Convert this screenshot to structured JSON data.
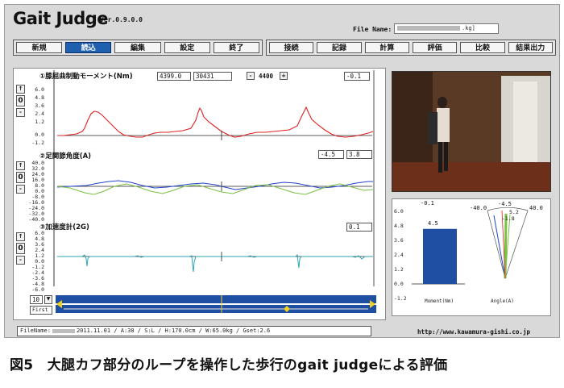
{
  "app": {
    "title": "Gait Judge",
    "version": "Ver.0.9.0.0",
    "file_name_label": "File Name:",
    "file_name_suffix": ".kg]"
  },
  "toolbar_left": [
    "新規",
    "読込",
    "編集",
    "設定",
    "終了"
  ],
  "toolbar_left_active": 1,
  "toolbar_right": [
    "接続",
    "記録",
    "計算",
    "評価",
    "比較",
    "結果出力"
  ],
  "pane1": {
    "title": "①膝屈曲制動モーメント(Nm)",
    "field1": "4399.0",
    "field2": "30431",
    "minus": "-",
    "value": "4400",
    "plus": "+",
    "readout": "-0.1",
    "ticks": [
      "6.0",
      "4.8",
      "3.6",
      "2.4",
      "1.2",
      "0.0",
      "-1.2"
    ],
    "side_up": "↑",
    "side_zero": "0",
    "side_down": "-"
  },
  "pane2": {
    "title": "②足関節角度(A)",
    "readout1": "-4.5",
    "readout2": "3.8",
    "ticks": [
      "40.0",
      "32.0",
      "24.0",
      "16.0",
      "8.0",
      "0.0",
      "-8.0",
      "-16.0",
      "-24.0",
      "-32.0",
      "-40.0"
    ],
    "side_up": "↑",
    "side_zero": "0",
    "side_down": "-"
  },
  "pane3": {
    "title": "③加速度計(2G)",
    "readout": "0.1",
    "ticks": [
      "6.0",
      "4.8",
      "3.6",
      "2.4",
      "1.2",
      "0.0",
      "-1.2",
      "-2.4",
      "-3.6",
      "-4.8",
      "-6.0"
    ],
    "side_up": "↑",
    "side_zero": "0",
    "side_down": "-"
  },
  "controls": {
    "zoom_value": "10",
    "zoom_btn": "▼",
    "first_label": "First"
  },
  "moment_chart": {
    "top_readout": "-0.1",
    "bar_label": "4.5",
    "value": 4.5,
    "y_ticks": [
      "6.0",
      "4.8",
      "3.6",
      "2.4",
      "1.2",
      "0.0",
      "-1.2"
    ],
    "xlabel": "Moment(Nm)"
  },
  "angle_chart": {
    "left_label": "-40.0",
    "top_label": "-4.5",
    "right_label": "40.0",
    "inner1": "5.2",
    "inner2": "-1.8",
    "xlabel": "Angle(A)"
  },
  "status": {
    "prefix": "FileName:",
    "details": "2011.11.01 / A:30 / S:L / H:170.0cm / W:65.0kg / Gset:2.6"
  },
  "url": "http://www.kawamura-gishi.co.jp",
  "caption": "図5　大腿カフ部分のループを操作した歩行のgait judgeによる評価",
  "colors": {
    "moment_line": "#e02020",
    "angle_blue": "#2244cc",
    "angle_green": "#7bc043",
    "accel_line": "#2aa7b8",
    "bar_fill": "#1f4fa3",
    "scroll_bar": "#1f4fa3",
    "scroll_thumb": "#f0d020",
    "active_tab": "#1f5fb0"
  }
}
